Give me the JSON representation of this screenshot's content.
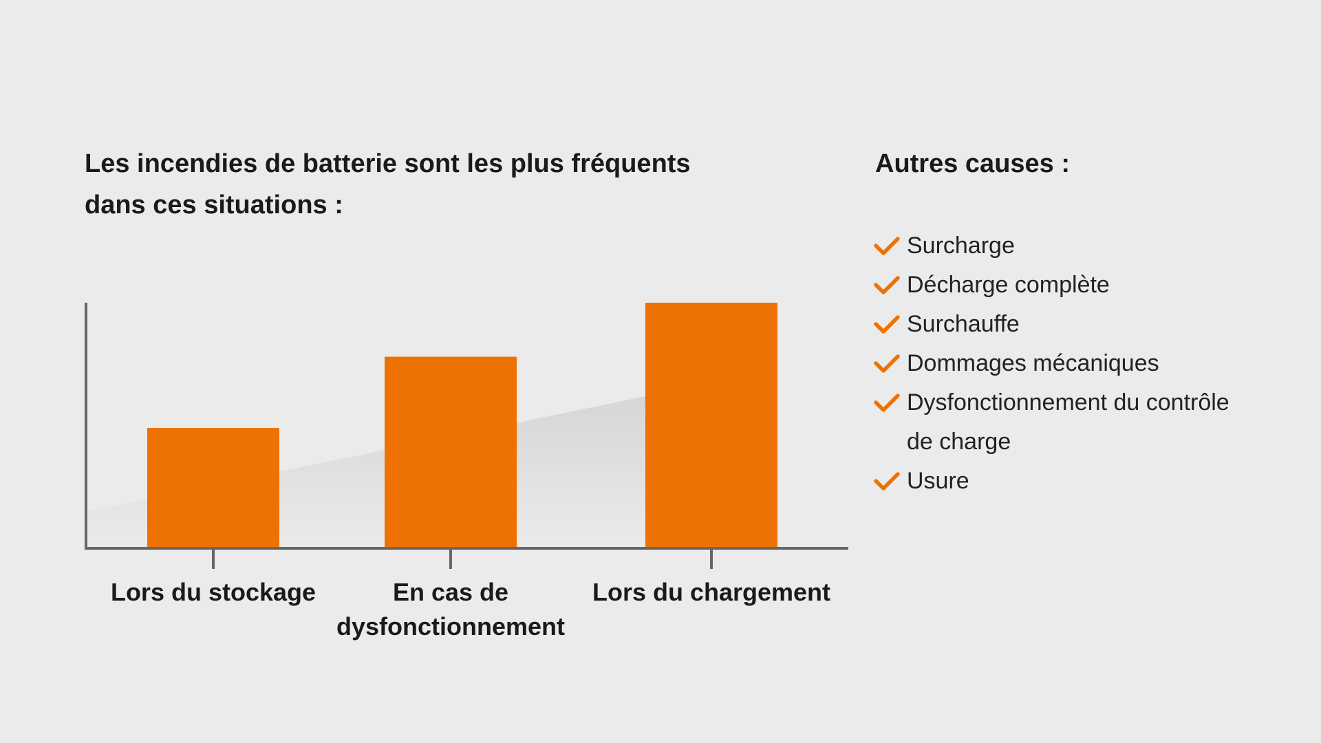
{
  "colors": {
    "background": "#ebebeb",
    "bar": "#ee7203",
    "axis": "#666666",
    "check": "#ee7203",
    "trend_band": "#d9d9d9"
  },
  "chart_data": {
    "type": "bar",
    "title_lines": [
      "Les incendies de batterie sont les plus fréquents",
      "dans ces situations :"
    ],
    "categories": [
      [
        "Lors du stockage"
      ],
      [
        "En cas de",
        "dysfonctionnement"
      ],
      [
        "Lors du chargement"
      ]
    ],
    "values": [
      49,
      78,
      100
    ],
    "ylim": [
      0,
      100
    ],
    "y_axis_ticks_labeled": false,
    "grid": false,
    "legend": "none",
    "background_trend": [
      15,
      62
    ]
  },
  "sidebar": {
    "title": "Autres causes :",
    "icon": "check-icon",
    "items": [
      {
        "lines": [
          "Surcharge"
        ]
      },
      {
        "lines": [
          "Décharge complète"
        ]
      },
      {
        "lines": [
          "Surchauffe"
        ]
      },
      {
        "lines": [
          "Dommages mécaniques"
        ]
      },
      {
        "lines": [
          "Dysfonctionnement du contrôle",
          "de charge"
        ]
      },
      {
        "lines": [
          "Usure"
        ]
      }
    ]
  }
}
